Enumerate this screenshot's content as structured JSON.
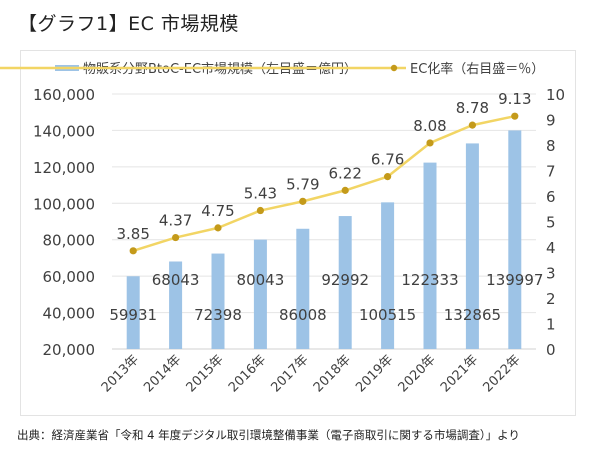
{
  "title": "【グラフ1】EC 市場規模",
  "source": "出典：経済産業省「令和 4 年度デジタル取引環境整備事業（電子商取引に関する市場調査）」より",
  "chart_data": {
    "type": "bar",
    "title": "【グラフ1】EC 市場規模",
    "categories": [
      "2013年",
      "2014年",
      "2015年",
      "2016年",
      "2017年",
      "2018年",
      "2019年",
      "2020年",
      "2021年",
      "2022年"
    ],
    "series": [
      {
        "name": "物販系分野BtoC-EC市場規模（左目盛＝億円）",
        "type": "bar",
        "axis": "left",
        "color": "#9dc3e6",
        "values": [
          59931,
          68043,
          72398,
          80043,
          86008,
          92992,
          100515,
          122333,
          132865,
          139997
        ],
        "labels": [
          "59931",
          "68043",
          "72398",
          "80043",
          "86008",
          "92992",
          "100515",
          "122333",
          "132865",
          "139997"
        ]
      },
      {
        "name": "EC化率（右目盛＝％）",
        "type": "line",
        "axis": "right",
        "color": "#f2d564",
        "marker_color": "#c49a1a",
        "values": [
          3.85,
          4.37,
          4.75,
          5.43,
          5.79,
          6.22,
          6.76,
          8.08,
          8.78,
          9.13
        ],
        "labels": [
          "3.85",
          "4.37",
          "4.75",
          "5.43",
          "5.79",
          "6.22",
          "6.76",
          "8.08",
          "8.78",
          "9.13"
        ]
      }
    ],
    "y_left": {
      "range": [
        20000,
        160000
      ],
      "ticks": [
        20000,
        40000,
        60000,
        80000,
        100000,
        120000,
        140000,
        160000
      ],
      "tick_labels": [
        "20,000",
        "40,000",
        "60,000",
        "80,000",
        "100,000",
        "120,000",
        "140,000",
        "160,000"
      ]
    },
    "y_right": {
      "range": [
        0,
        10
      ],
      "ticks": [
        0,
        1,
        2,
        3,
        4,
        5,
        6,
        7,
        8,
        9,
        10
      ],
      "tick_labels": [
        "0",
        "1",
        "2",
        "3",
        "4",
        "5",
        "6",
        "7",
        "8",
        "9",
        "10"
      ]
    },
    "grid": true,
    "legend": "top"
  }
}
